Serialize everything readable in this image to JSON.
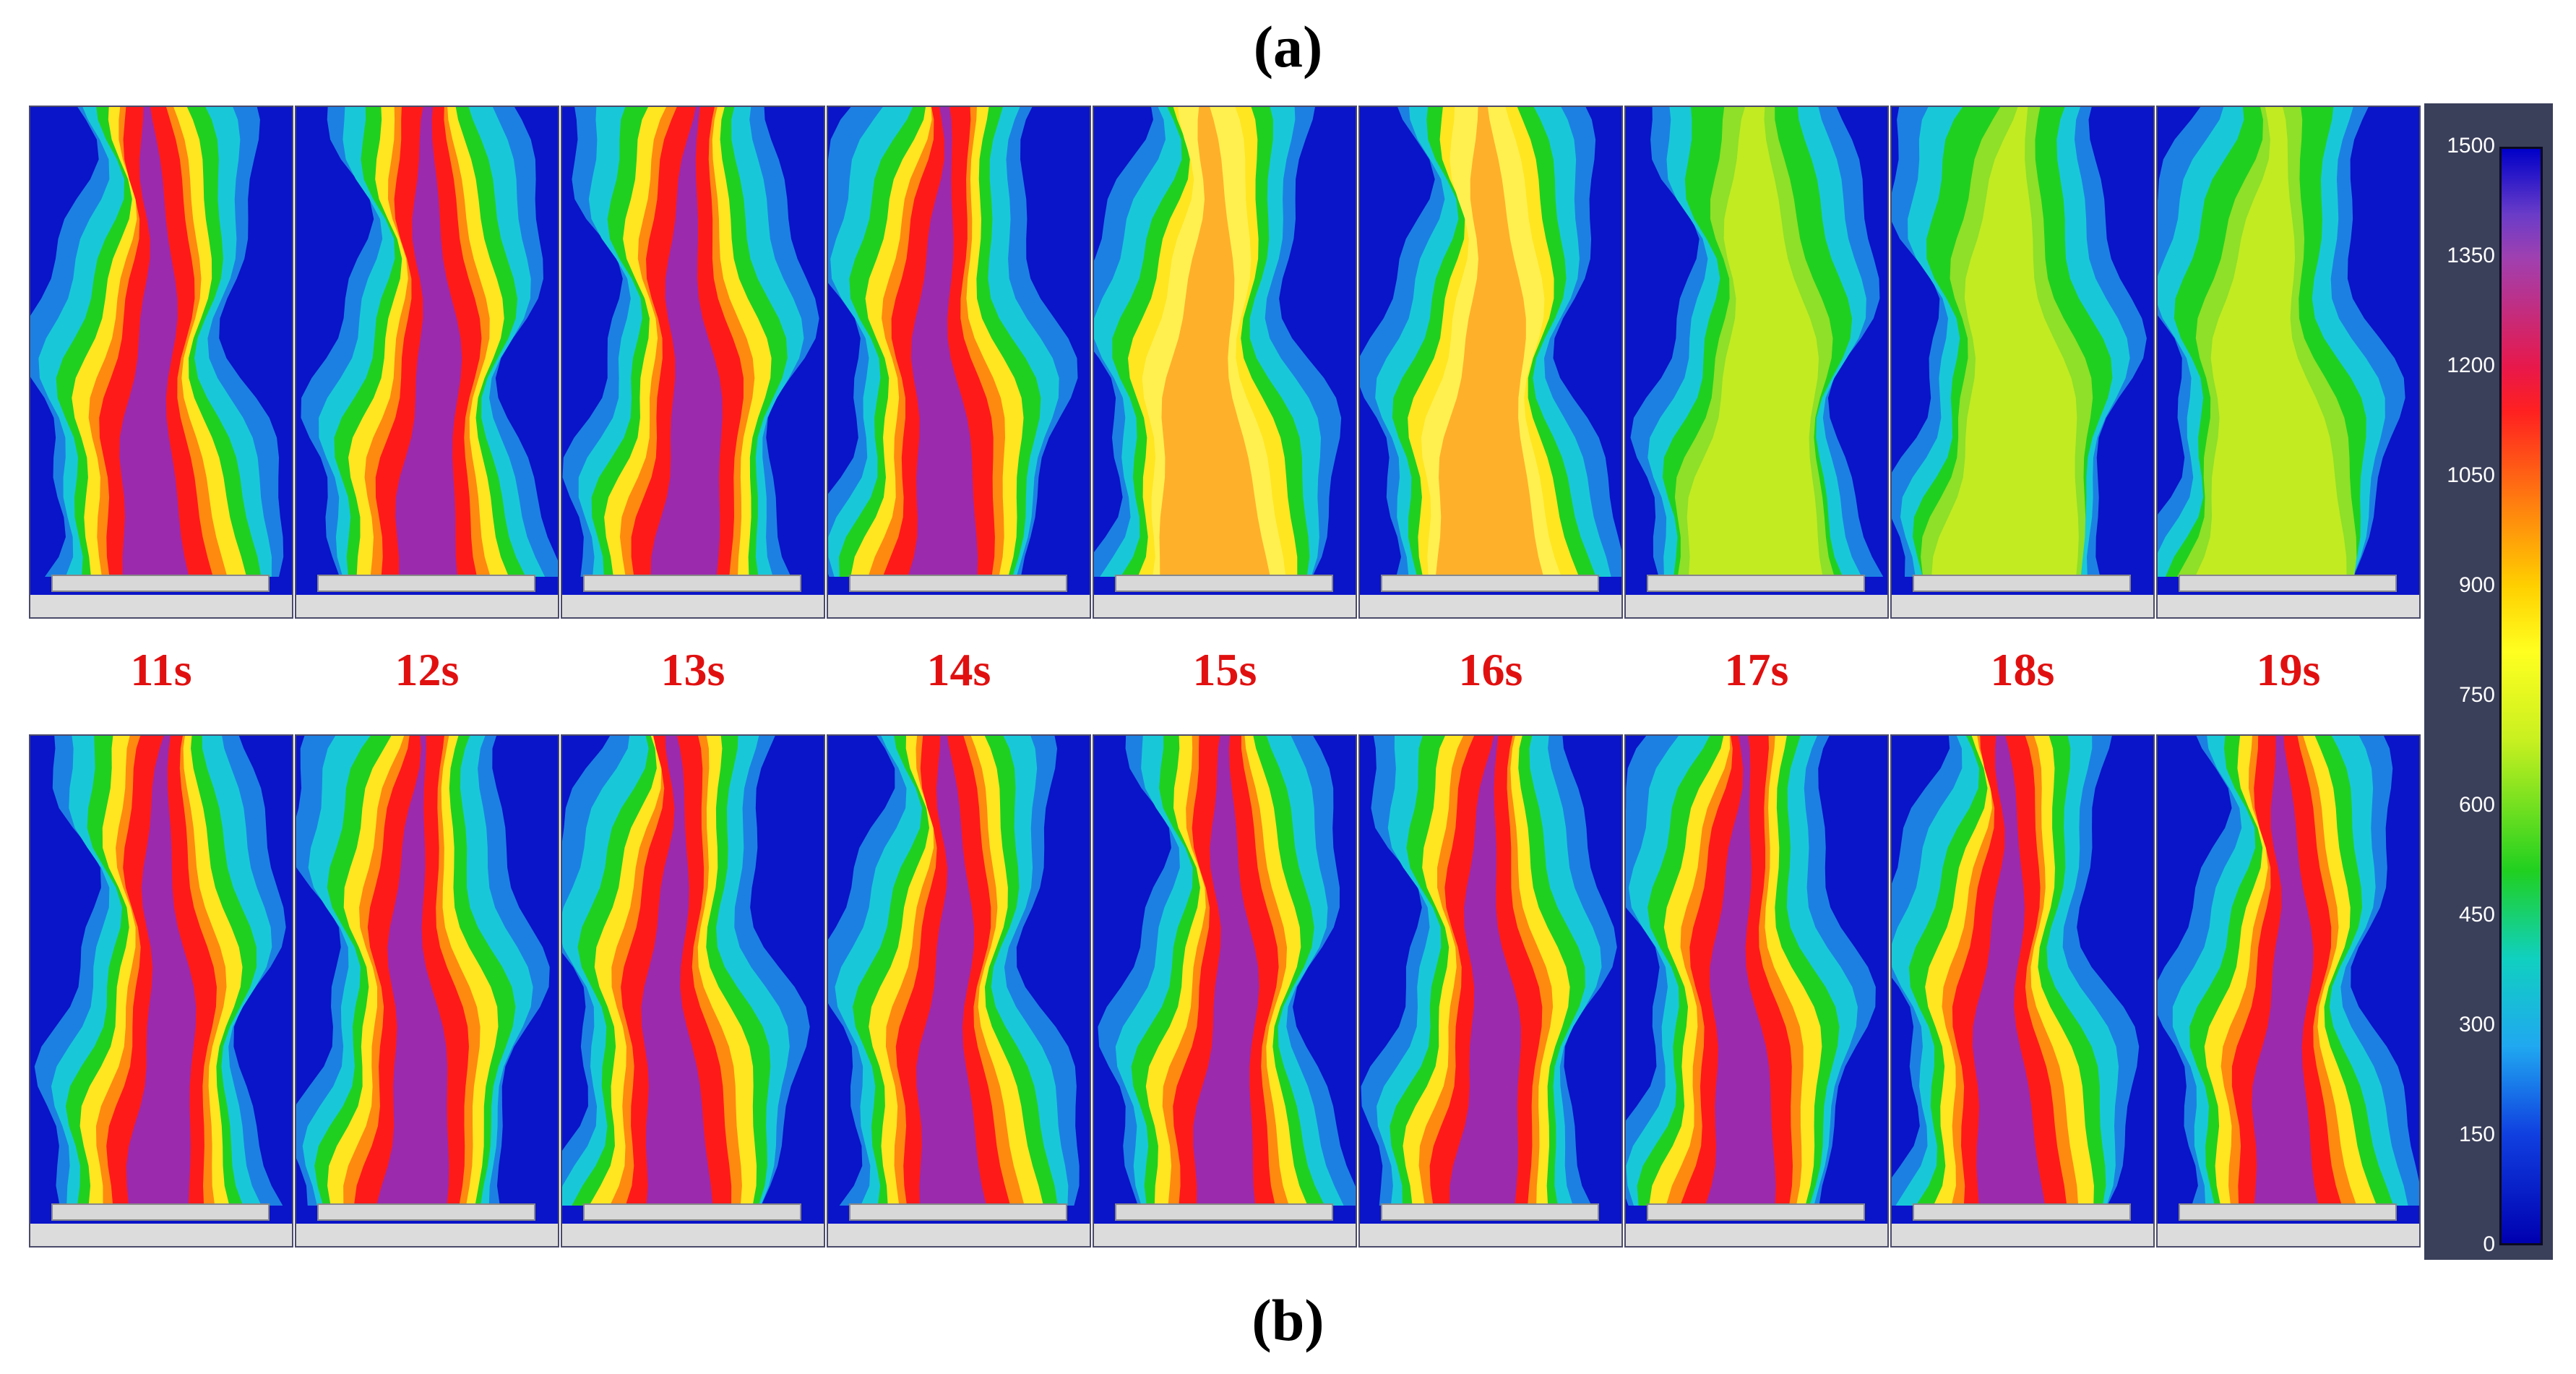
{
  "panel_labels": {
    "top": "(a)",
    "bottom": "(b)"
  },
  "time_labels": [
    "11s",
    "12s",
    "13s",
    "14s",
    "15s",
    "16s",
    "17s",
    "18s",
    "19s"
  ],
  "colorbar": {
    "ticks": [
      "1500",
      "1350",
      "1200",
      "1050",
      "900",
      "750",
      "600",
      "450",
      "300",
      "150",
      "0"
    ]
  },
  "colors": {
    "background_blue": "#0a14c8",
    "cool_green": "#20d020",
    "hot_yellow": "#ffe620",
    "hot_red": "#ff1a1a",
    "hottest_purple": "#8a2ec8",
    "time_label_red": "#e11010",
    "colorbar_panel": "#3a3f5a"
  },
  "rows": {
    "top": {
      "peak_color_per_frame": [
        "hot_red",
        "hot_red",
        "hot_red",
        "hot_red",
        "hot_yellow",
        "hot_yellow",
        "cool_green",
        "cool_green",
        "cool_green"
      ]
    },
    "bottom": {
      "peak_color_per_frame": [
        "hot_red",
        "hot_red",
        "hot_red",
        "hot_red",
        "hot_red",
        "hot_red",
        "hot_red",
        "hot_red",
        "hot_red"
      ]
    }
  }
}
